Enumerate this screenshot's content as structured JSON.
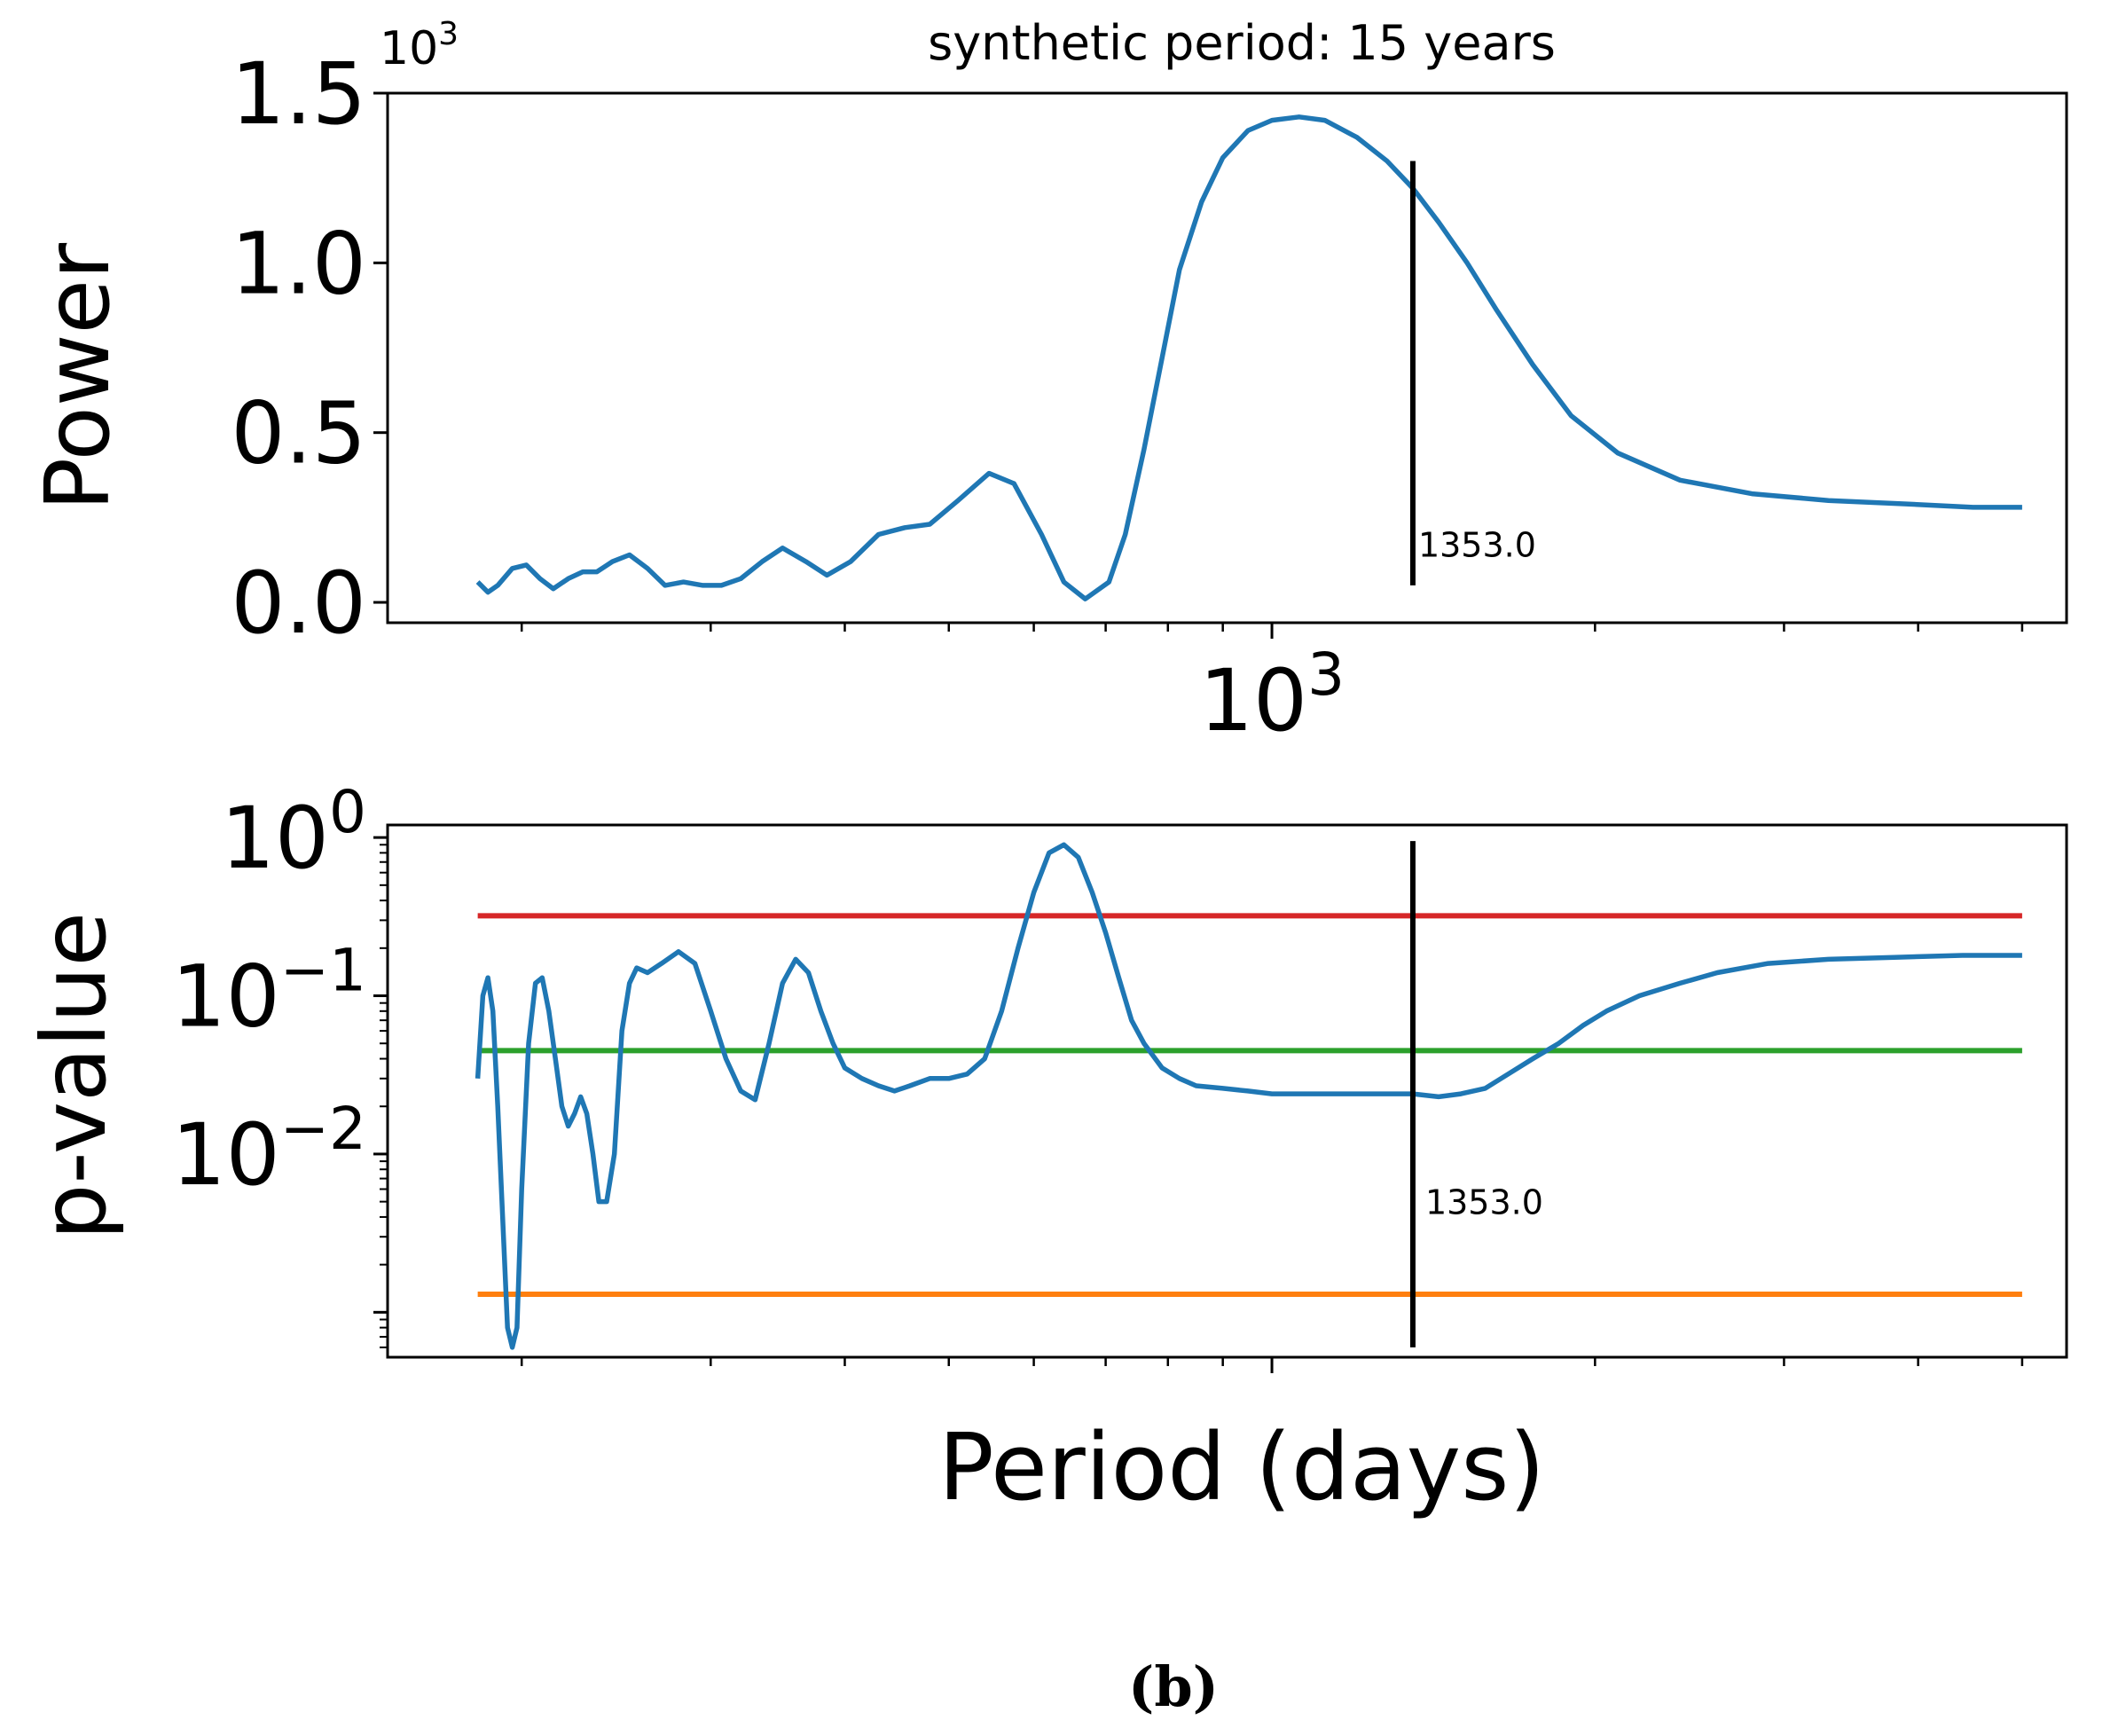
{
  "caption": "(b)",
  "chart_data": [
    {
      "type": "line",
      "title": "synthetic period: 15 years",
      "xlabel": "",
      "ylabel": "Power",
      "xscale": "log",
      "xlim": [
        150,
        5500
      ],
      "ylim": [
        -0.06,
        1.5
      ],
      "offset_label": "10",
      "offset_label_exp": "3",
      "yticks": [
        0.0,
        0.5,
        1.0,
        1.5
      ],
      "ytick_labels": [
        "0.0",
        "0.5",
        "1.0",
        "1.5"
      ],
      "xtick_major": 1000,
      "xtick_label_base": "10",
      "xtick_label_exp": "3",
      "series": [
        {
          "name": "power",
          "color": "#1f77b4",
          "x": [
            182,
            186,
            190,
            196,
            202,
            208,
            214,
            221,
            228,
            235,
            243,
            252,
            262,
            272,
            283,
            295,
            307,
            320,
            335,
            350,
            368,
            385,
            405,
            430,
            455,
            480,
            510,
            545,
            575,
            610,
            640,
            670,
            705,
            730,
            760,
            790,
            820,
            860,
            900,
            950,
            1000,
            1060,
            1120,
            1200,
            1280,
            1353,
            1430,
            1520,
            1620,
            1750,
            1900,
            2100,
            2400,
            2800,
            3300,
            3900,
            4500,
            5000
          ],
          "y": [
            0.06,
            0.03,
            0.05,
            0.1,
            0.11,
            0.07,
            0.04,
            0.07,
            0.09,
            0.09,
            0.12,
            0.14,
            0.1,
            0.05,
            0.06,
            0.05,
            0.05,
            0.07,
            0.12,
            0.16,
            0.12,
            0.08,
            0.12,
            0.2,
            0.22,
            0.23,
            0.3,
            0.38,
            0.35,
            0.2,
            0.06,
            0.01,
            0.06,
            0.2,
            0.45,
            0.72,
            0.98,
            1.18,
            1.31,
            1.39,
            1.42,
            1.43,
            1.42,
            1.37,
            1.3,
            1.22,
            1.12,
            1.0,
            0.86,
            0.7,
            0.55,
            0.44,
            0.36,
            0.32,
            0.3,
            0.29,
            0.28,
            0.28
          ]
        }
      ],
      "vline": {
        "x": 1353,
        "y0": 0.05,
        "y1": 1.3,
        "label": "1353.0",
        "label_y": 0.15
      }
    },
    {
      "type": "line",
      "xlabel": "Period (days)",
      "ylabel": "p-value",
      "xscale": "log",
      "yscale": "log",
      "xlim": [
        150,
        5500
      ],
      "ylim": [
        0.00052,
        1.2
      ],
      "yticks": [
        1,
        0.1,
        0.01
      ],
      "ytick_base": "10",
      "ytick_exps": [
        "0",
        "−1",
        "−2"
      ],
      "series": [
        {
          "name": "p-value",
          "color": "#1f77b4",
          "x": [
            182,
            184,
            186,
            188,
            190,
            192,
            194,
            196,
            198,
            200,
            203,
            206,
            209,
            212,
            215,
            218,
            221,
            224,
            227,
            230,
            233,
            236,
            240,
            244,
            248,
            252,
            256,
            262,
            270,
            280,
            290,
            300,
            310,
            320,
            330,
            340,
            350,
            360,
            370,
            380,
            390,
            400,
            415,
            430,
            445,
            460,
            480,
            500,
            520,
            540,
            560,
            580,
            600,
            620,
            640,
            660,
            680,
            700,
            720,
            740,
            760,
            790,
            820,
            850,
            900,
            950,
            1000,
            1060,
            1120,
            1200,
            1280,
            1353,
            1430,
            1500,
            1580,
            1660,
            1750,
            1850,
            1950,
            2050,
            2200,
            2400,
            2600,
            2900,
            3300,
            3800,
            4400,
            5000
          ],
          "y": [
            0.03,
            0.1,
            0.13,
            0.08,
            0.02,
            0.004,
            0.0008,
            0.0006,
            0.0008,
            0.006,
            0.05,
            0.12,
            0.13,
            0.08,
            0.04,
            0.02,
            0.015,
            0.018,
            0.023,
            0.018,
            0.01,
            0.005,
            0.005,
            0.01,
            0.06,
            0.12,
            0.15,
            0.14,
            0.16,
            0.19,
            0.16,
            0.08,
            0.04,
            0.025,
            0.022,
            0.05,
            0.12,
            0.17,
            0.14,
            0.08,
            0.05,
            0.035,
            0.03,
            0.027,
            0.025,
            0.027,
            0.03,
            0.03,
            0.032,
            0.04,
            0.08,
            0.2,
            0.45,
            0.8,
            0.9,
            0.75,
            0.45,
            0.25,
            0.13,
            0.07,
            0.05,
            0.035,
            0.03,
            0.027,
            0.026,
            0.025,
            0.024,
            0.024,
            0.024,
            0.024,
            0.024,
            0.024,
            0.023,
            0.024,
            0.026,
            0.032,
            0.04,
            0.05,
            0.065,
            0.08,
            0.1,
            0.12,
            0.14,
            0.16,
            0.17,
            0.175,
            0.18,
            0.18
          ]
        }
      ],
      "hlines": [
        {
          "name": "red threshold",
          "y": 0.32,
          "color": "#d62728"
        },
        {
          "name": "green threshold",
          "y": 0.045,
          "color": "#2ca02c"
        },
        {
          "name": "orange threshold",
          "y": 0.0013,
          "color": "#ff7f0e"
        }
      ],
      "hline_x_range": [
        182,
        5000
      ],
      "vline": {
        "x": 1353,
        "y0": 0.0006,
        "y1": 0.95,
        "label": "1353.0",
        "label_y": 0.005
      }
    }
  ]
}
